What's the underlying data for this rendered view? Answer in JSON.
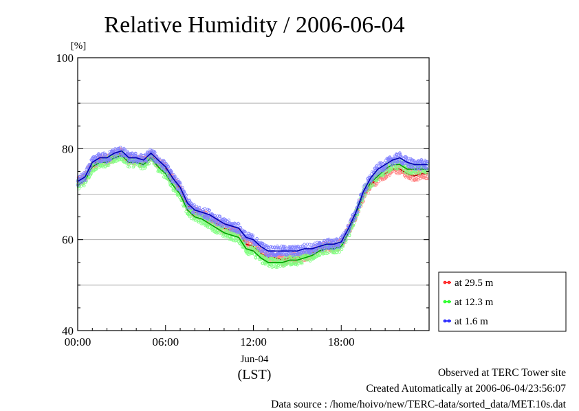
{
  "chart_data": {
    "type": "line",
    "title": "Relative Humidity / 2006-06-04",
    "ylabel": "[%]",
    "ylim": [
      40,
      100
    ],
    "xlim": [
      0,
      24
    ],
    "yticks": [
      40,
      60,
      80,
      100
    ],
    "xticks": [
      "00:00",
      "06:00",
      "12:00",
      "18:00"
    ],
    "x_sublabel": "Jun-04",
    "x_unit": "(LST)",
    "grid": true,
    "legend_position": "right",
    "series": [
      {
        "name": "at 29.5 m",
        "color": "#ff0000",
        "x": [
          0,
          0.5,
          1,
          1.5,
          2,
          2.5,
          3,
          3.5,
          4,
          4.5,
          5,
          5.5,
          6,
          6.5,
          7,
          7.5,
          8,
          8.5,
          9,
          9.5,
          10,
          10.5,
          11,
          11.5,
          12,
          12.5,
          13,
          13.5,
          14,
          14.5,
          15,
          15.5,
          16,
          16.5,
          17,
          17.5,
          18,
          18.5,
          19,
          19.5,
          20,
          20.5,
          21,
          21.5,
          22,
          22.5,
          23,
          23.5,
          23.9
        ],
        "values": [
          72.5,
          73.5,
          76.5,
          77.5,
          77.5,
          78.5,
          79.0,
          77.5,
          77.5,
          77.0,
          78.5,
          77.0,
          75.5,
          73.0,
          71.0,
          67.5,
          66.0,
          65.5,
          64.5,
          63.5,
          62.5,
          62.0,
          61.5,
          59.0,
          58.5,
          57.0,
          56.0,
          56.0,
          55.5,
          56.0,
          56.0,
          56.5,
          57.0,
          58.0,
          58.5,
          58.5,
          59.0,
          62.0,
          65.5,
          69.5,
          72.0,
          73.5,
          74.5,
          75.5,
          75.5,
          74.5,
          74.0,
          74.5,
          74.5
        ]
      },
      {
        "name": "at 12.3 m",
        "color": "#00ff00",
        "x": [
          0,
          0.5,
          1,
          1.5,
          2,
          2.5,
          3,
          3.5,
          4,
          4.5,
          5,
          5.5,
          6,
          6.5,
          7,
          7.5,
          8,
          8.5,
          9,
          9.5,
          10,
          10.5,
          11,
          11.5,
          12,
          12.5,
          13,
          13.5,
          14,
          14.5,
          15,
          15.5,
          16,
          16.5,
          17,
          17.5,
          18,
          18.5,
          19,
          19.5,
          20,
          20.5,
          21,
          21.5,
          22,
          22.5,
          23,
          23.5,
          23.9
        ],
        "values": [
          72.0,
          73.0,
          76.0,
          77.0,
          77.0,
          78.0,
          78.5,
          77.0,
          77.0,
          76.5,
          78.0,
          76.0,
          74.5,
          72.0,
          70.0,
          66.5,
          65.0,
          64.5,
          63.5,
          62.5,
          61.5,
          61.0,
          60.5,
          58.0,
          57.5,
          56.0,
          55.0,
          55.0,
          55.0,
          55.5,
          55.5,
          56.0,
          56.5,
          57.5,
          58.0,
          58.0,
          58.5,
          61.5,
          65.5,
          70.0,
          72.5,
          74.0,
          75.5,
          76.5,
          76.5,
          75.5,
          75.5,
          75.5,
          75.5
        ]
      },
      {
        "name": "at 1.6 m",
        "color": "#0000ff",
        "x": [
          0,
          0.5,
          1,
          1.5,
          2,
          2.5,
          3,
          3.5,
          4,
          4.5,
          5,
          5.5,
          6,
          6.5,
          7,
          7.5,
          8,
          8.5,
          9,
          9.5,
          10,
          10.5,
          11,
          11.5,
          12,
          12.5,
          13,
          13.5,
          14,
          14.5,
          15,
          15.5,
          16,
          16.5,
          17,
          17.5,
          18,
          18.5,
          19,
          19.5,
          20,
          20.5,
          21,
          21.5,
          22,
          22.5,
          23,
          23.5,
          23.9
        ],
        "values": [
          72.8,
          73.8,
          77.0,
          78.0,
          78.0,
          79.0,
          79.5,
          78.0,
          78.0,
          77.5,
          79.0,
          77.5,
          76.0,
          73.5,
          71.5,
          68.0,
          66.5,
          66.0,
          65.5,
          64.5,
          63.5,
          63.0,
          62.5,
          60.5,
          60.0,
          58.5,
          57.5,
          57.5,
          57.5,
          57.5,
          57.5,
          58.0,
          58.0,
          58.5,
          59.0,
          59.0,
          59.5,
          62.5,
          66.0,
          70.5,
          73.5,
          75.5,
          76.5,
          77.5,
          78.0,
          77.0,
          76.5,
          76.5,
          76.5
        ]
      }
    ]
  },
  "footer": {
    "line1": "Observed at TERC Tower site",
    "line2": "Created Automatically at 2006-06-04/23:56:07",
    "line3": "Data source : /home/hoivo/new/TERC-data/sorted_data/MET.10s.dat"
  }
}
